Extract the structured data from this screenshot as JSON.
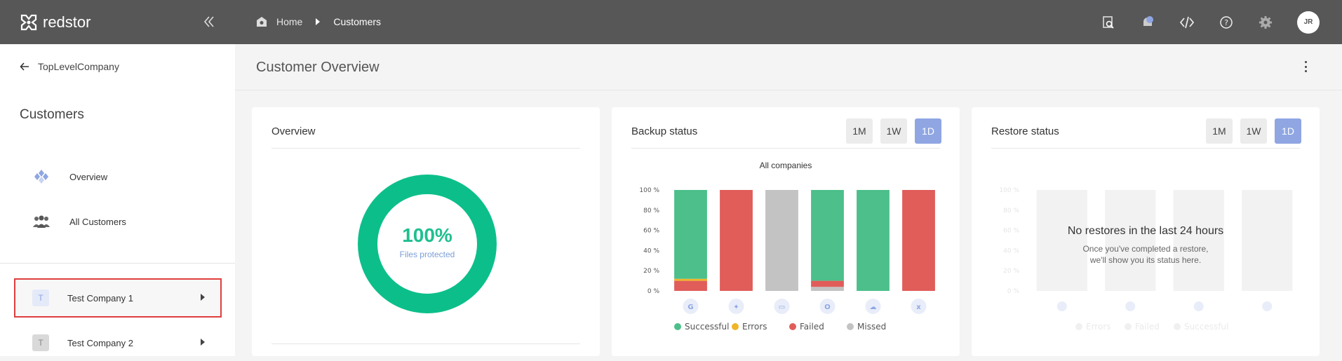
{
  "brand": {
    "name": "redstor"
  },
  "breadcrumb": {
    "home": "Home",
    "current": "Customers"
  },
  "user": {
    "initials": "JR"
  },
  "sidebar": {
    "back_label": "TopLevelCompany",
    "title": "Customers",
    "nav": [
      {
        "label": "Overview",
        "icon": "overview-icon"
      },
      {
        "label": "All Customers",
        "icon": "people-icon"
      }
    ],
    "companies": [
      {
        "initial": "T",
        "label": "Test Company 1",
        "selected": true
      },
      {
        "initial": "T",
        "label": "Test Company 2",
        "selected": false
      }
    ]
  },
  "main": {
    "title": "Customer Overview",
    "overview": {
      "title": "Overview",
      "percent": "100%",
      "caption": "Files protected"
    },
    "backup": {
      "title": "Backup status",
      "periods": [
        "1M",
        "1W",
        "1D"
      ],
      "active_period": "1D",
      "subtitle": "All companies"
    },
    "restore": {
      "title": "Restore status",
      "periods": [
        "1M",
        "1W",
        "1D"
      ],
      "active_period": "1D",
      "empty_title": "No restores in the last 24 hours",
      "empty_text_1": "Once you've completed a restore,",
      "empty_text_2": "we'll show you its status here."
    }
  },
  "chart_data": [
    {
      "type": "bar",
      "stacked": true,
      "title": "All companies",
      "categories": [
        "google-icon",
        "dropbox-icon",
        "computer-icon",
        "office365-icon",
        "salesforce-icon",
        "xero-icon"
      ],
      "series": [
        {
          "name": "Successful",
          "color": "#4cbf8a",
          "values": [
            88,
            0,
            0,
            90,
            100,
            0
          ]
        },
        {
          "name": "Errors",
          "color": "#f0b429",
          "values": [
            2,
            0,
            0,
            0,
            0,
            0
          ]
        },
        {
          "name": "Failed",
          "color": "#e05d5a",
          "values": [
            10,
            100,
            0,
            6,
            0,
            100
          ]
        },
        {
          "name": "Missed",
          "color": "#c3c3c3",
          "values": [
            0,
            0,
            100,
            4,
            0,
            0
          ]
        }
      ],
      "yticks": [
        "0 %",
        "20 %",
        "40 %",
        "60 %",
        "80 %",
        "100 %"
      ],
      "ylim": [
        0,
        100
      ],
      "legend": "bottom"
    },
    {
      "type": "bar",
      "stacked": true,
      "title": "",
      "empty": true,
      "categories": [
        "",
        "",
        "",
        ""
      ],
      "series": [
        {
          "name": "Errors",
          "color": "#f0b429",
          "values": [
            0,
            0,
            0,
            0
          ]
        },
        {
          "name": "Failed",
          "color": "#e05d5a",
          "values": [
            0,
            0,
            0,
            0
          ]
        },
        {
          "name": "Successful",
          "color": "#4cbf8a",
          "values": [
            0,
            0,
            0,
            0
          ]
        }
      ],
      "yticks": [
        "0 %",
        "20 %",
        "40 %",
        "60 %",
        "80 %",
        "100 %"
      ],
      "ylim": [
        0,
        100
      ],
      "legend": "bottom"
    }
  ]
}
